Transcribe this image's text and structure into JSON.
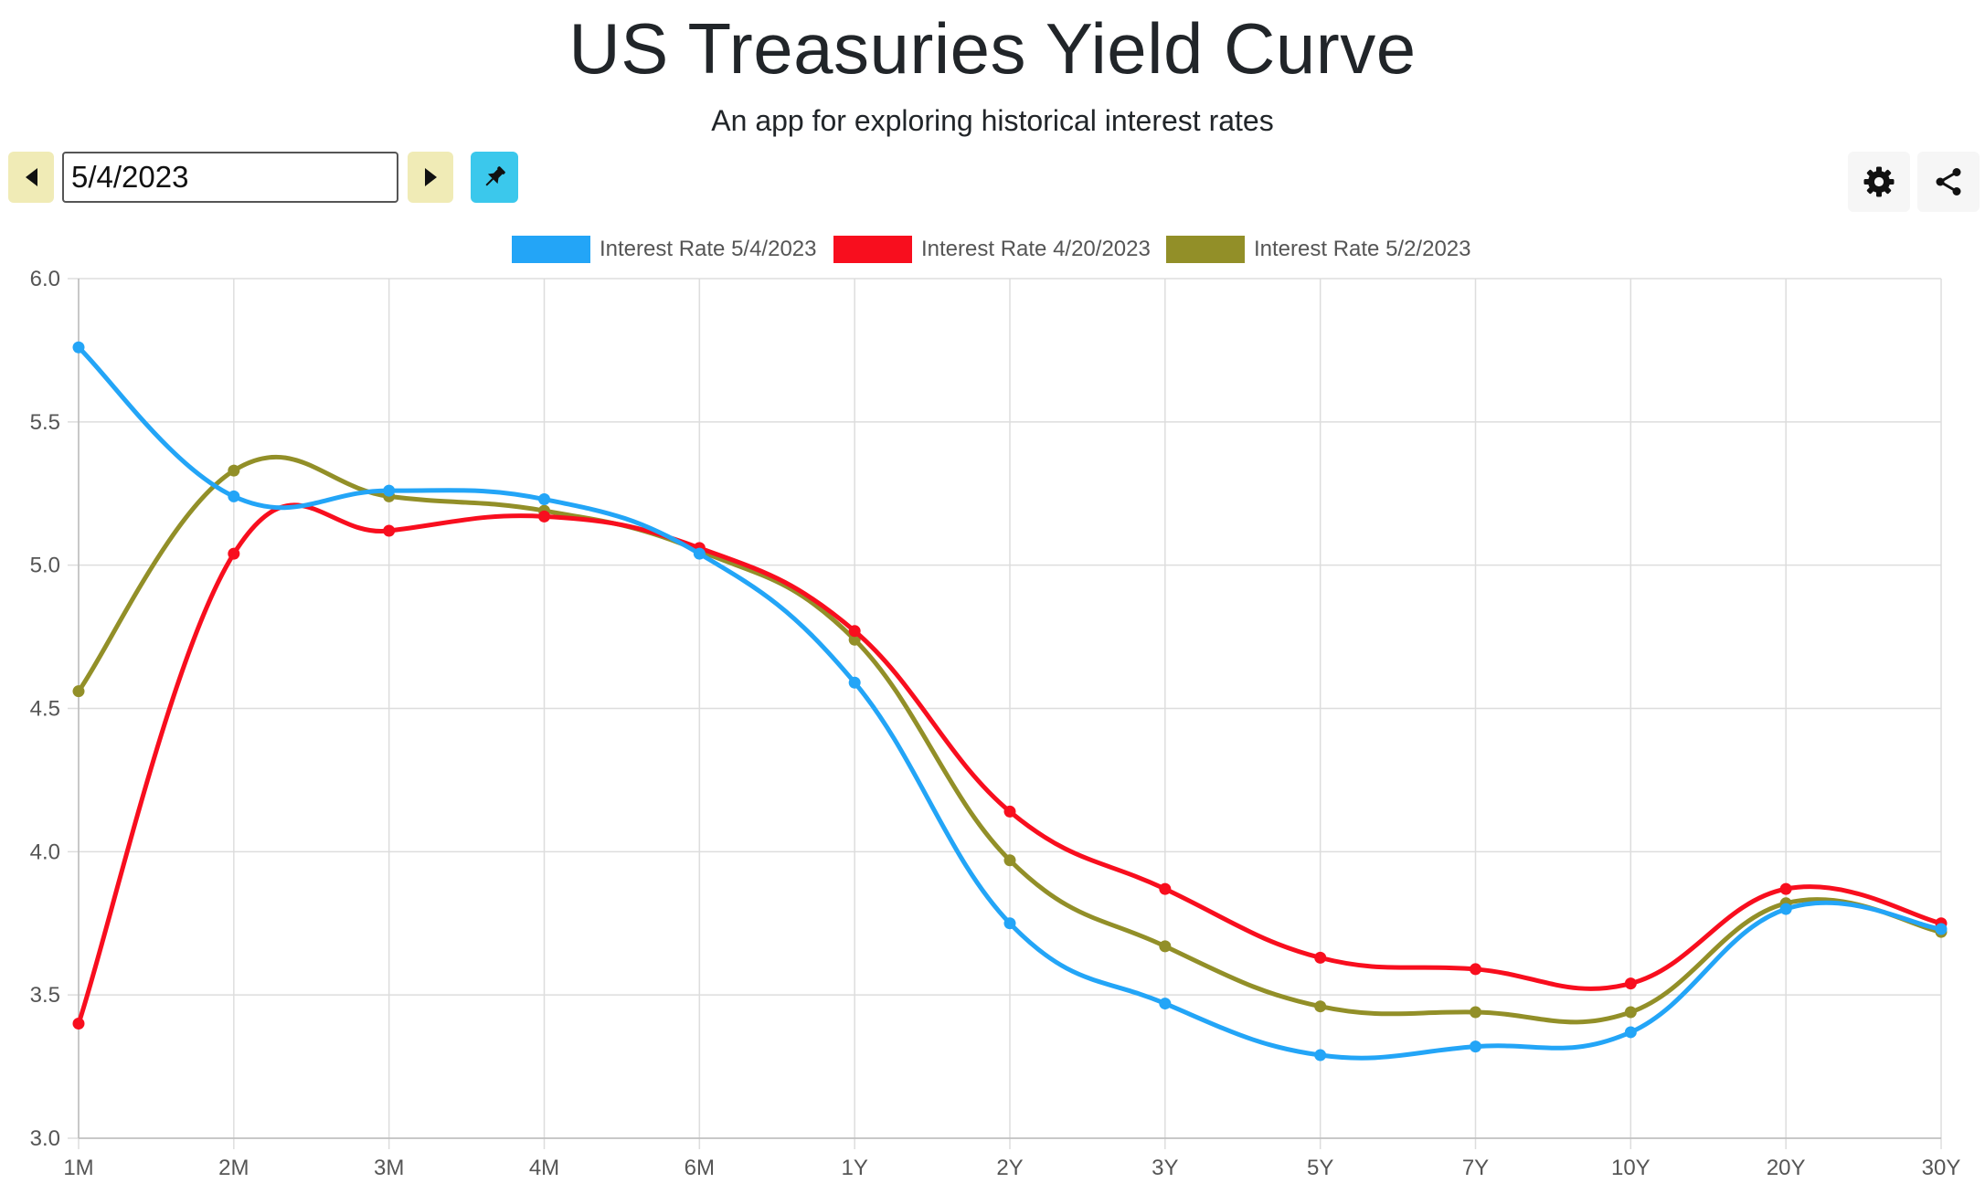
{
  "header": {
    "title": "US Treasuries Yield Curve",
    "subtitle": "An app for exploring historical interest rates"
  },
  "controls": {
    "date_value": "5/4/2023",
    "prev_icon": "caret-left-icon",
    "next_icon": "caret-right-icon",
    "pin_icon": "pin-icon",
    "settings_icon": "gear-icon",
    "share_icon": "share-icon",
    "button_color": "#f0ebb6",
    "pin_color": "#3bc8ec"
  },
  "chart_data": {
    "type": "line",
    "categories": [
      "1M",
      "2M",
      "3M",
      "4M",
      "6M",
      "1Y",
      "2Y",
      "3Y",
      "5Y",
      "7Y",
      "10Y",
      "20Y",
      "30Y"
    ],
    "ylim": [
      3.0,
      6.0
    ],
    "yticks": [
      "3.0",
      "3.5",
      "4.0",
      "4.5",
      "5.0",
      "5.5",
      "6.0"
    ],
    "xlabel": "",
    "ylabel": "",
    "grid": true,
    "legend_position": "top-center",
    "series": [
      {
        "name": "Interest Rate 5/4/2023",
        "color": "#23a5f7",
        "values": [
          5.76,
          5.24,
          5.26,
          5.23,
          5.04,
          4.59,
          3.75,
          3.47,
          3.29,
          3.32,
          3.37,
          3.8,
          3.73
        ]
      },
      {
        "name": "Interest Rate 4/20/2023",
        "color": "#f80e1e",
        "values": [
          3.4,
          5.04,
          5.12,
          5.17,
          5.06,
          4.77,
          4.14,
          3.87,
          3.63,
          3.59,
          3.54,
          3.87,
          3.75
        ]
      },
      {
        "name": "Interest Rate 5/2/2023",
        "color": "#928f28",
        "values": [
          4.56,
          5.33,
          5.24,
          5.19,
          5.05,
          4.74,
          3.97,
          3.67,
          3.46,
          3.44,
          3.44,
          3.82,
          3.72
        ]
      }
    ]
  }
}
